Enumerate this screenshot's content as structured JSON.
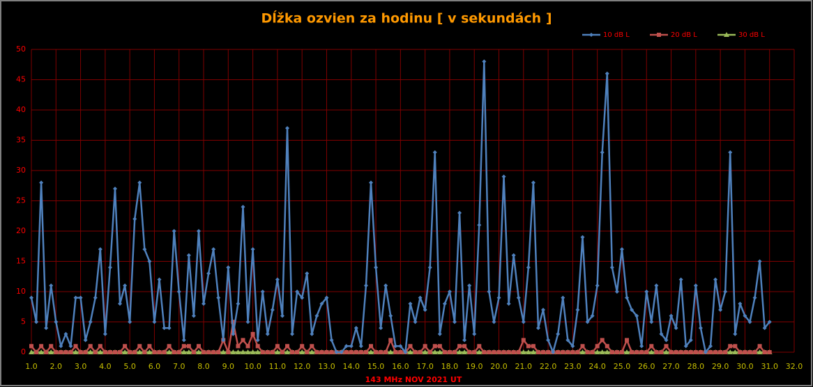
{
  "chart_data": {
    "type": "line",
    "title": "Dĺžka ozvien za hodinu [ v sekundách ]",
    "x_label": "143 MHz NOV 2021 UT",
    "x": [
      1,
      1.2,
      1.4,
      1.6,
      1.8,
      2,
      2.2,
      2.4,
      2.6,
      2.8,
      3,
      3.2,
      3.4,
      3.6,
      3.8,
      4,
      4.2,
      4.4,
      4.6,
      4.8,
      5,
      5.2,
      5.4,
      5.6,
      5.8,
      6,
      6.2,
      6.4,
      6.6,
      6.8,
      7,
      7.2,
      7.4,
      7.6,
      7.8,
      8,
      8.2,
      8.4,
      8.6,
      8.8,
      9,
      9.2,
      9.4,
      9.6,
      9.8,
      10,
      10.2,
      10.4,
      10.6,
      10.8,
      11,
      11.2,
      11.4,
      11.6,
      11.8,
      12,
      12.2,
      12.4,
      12.6,
      12.8,
      13,
      13.2,
      13.4,
      13.6,
      13.8,
      14,
      14.2,
      14.4,
      14.6,
      14.8,
      15,
      15.2,
      15.4,
      15.6,
      15.8,
      16,
      16.2,
      16.4,
      16.6,
      16.8,
      17,
      17.2,
      17.4,
      17.6,
      17.8,
      18,
      18.2,
      18.4,
      18.6,
      18.8,
      19,
      19.2,
      19.4,
      19.6,
      19.8,
      20,
      20.2,
      20.4,
      20.6,
      20.8,
      21,
      21.2,
      21.4,
      21.6,
      21.8,
      22,
      22.2,
      22.4,
      22.6,
      22.8,
      23,
      23.2,
      23.4,
      23.6,
      23.8,
      24,
      24.2,
      24.4,
      24.6,
      24.8,
      25,
      25.2,
      25.4,
      25.6,
      25.8,
      26,
      26.2,
      26.4,
      26.6,
      26.8,
      27,
      27.2,
      27.4,
      27.6,
      27.8,
      28,
      28.2,
      28.4,
      28.6,
      28.8,
      29,
      29.2,
      29.4,
      29.6,
      29.8,
      30,
      30.2,
      30.4,
      30.6,
      30.8,
      31
    ],
    "series": [
      {
        "name": "10 dB L",
        "color": "#4f81bd",
        "marker": "diamond",
        "values": [
          9,
          5,
          28,
          4,
          11,
          5,
          1,
          3,
          1,
          9,
          9,
          2,
          5,
          9,
          17,
          3,
          14,
          27,
          8,
          11,
          5,
          22,
          28,
          17,
          15,
          5,
          12,
          4,
          4,
          20,
          10,
          2,
          16,
          6,
          20,
          8,
          13,
          17,
          9,
          2,
          14,
          3,
          8,
          24,
          5,
          17,
          2,
          10,
          3,
          7,
          12,
          6,
          37,
          3,
          10,
          9,
          13,
          3,
          6,
          8,
          9,
          2,
          0,
          0,
          1,
          1,
          4,
          1,
          11,
          28,
          14,
          4,
          11,
          6,
          1,
          1,
          0,
          8,
          5,
          9,
          7,
          14,
          33,
          3,
          8,
          10,
          5,
          23,
          2,
          11,
          3,
          21,
          48,
          10,
          5,
          9,
          29,
          8,
          16,
          9,
          5,
          14,
          28,
          4,
          7,
          2,
          0,
          3,
          9,
          2,
          1,
          7,
          19,
          5,
          6,
          11,
          33,
          46,
          14,
          10,
          17,
          9,
          7,
          6,
          1,
          10,
          5,
          11,
          3,
          2,
          6,
          4,
          12,
          1,
          2,
          11,
          4,
          0,
          1,
          12,
          7,
          10,
          33,
          3,
          8,
          6,
          5,
          9,
          15,
          4,
          5
        ]
      },
      {
        "name": "20 dB L",
        "color": "#c0504d",
        "marker": "square",
        "values": [
          1,
          0,
          1,
          0,
          1,
          0,
          0,
          0,
          0,
          1,
          0,
          0,
          1,
          0,
          1,
          0,
          0,
          0,
          0,
          1,
          0,
          0,
          1,
          0,
          1,
          0,
          0,
          0,
          1,
          0,
          0,
          1,
          1,
          0,
          1,
          0,
          0,
          0,
          0,
          2,
          0,
          5,
          1,
          2,
          1,
          3,
          1,
          0,
          0,
          0,
          1,
          0,
          1,
          0,
          0,
          1,
          0,
          1,
          0,
          0,
          0,
          0,
          0,
          0,
          0,
          0,
          0,
          0,
          0,
          1,
          0,
          0,
          0,
          2,
          0,
          0,
          0,
          1,
          0,
          0,
          1,
          0,
          1,
          1,
          0,
          0,
          0,
          1,
          1,
          0,
          0,
          1,
          0,
          0,
          0,
          0,
          0,
          0,
          0,
          0,
          2,
          1,
          1,
          0,
          0,
          0,
          0,
          0,
          0,
          0,
          0,
          0,
          1,
          0,
          0,
          1,
          2,
          1,
          0,
          0,
          0,
          2,
          0,
          0,
          0,
          0,
          1,
          0,
          0,
          1,
          0,
          0,
          0,
          0,
          0,
          0,
          0,
          0,
          0,
          0,
          0,
          0,
          1,
          1,
          0,
          0,
          0,
          0,
          1,
          0,
          0
        ]
      },
      {
        "name": "30 dB L",
        "color": "#9bbb59",
        "marker": "triangle",
        "values": [
          0,
          0,
          0,
          0,
          0,
          0,
          0,
          0,
          0,
          0,
          0,
          0,
          0,
          0,
          0,
          0,
          0,
          0,
          0,
          0,
          0,
          0,
          0,
          0,
          0,
          0,
          0,
          0,
          0,
          0,
          0,
          0,
          0,
          0,
          0,
          0,
          0,
          0,
          0,
          0,
          0,
          0,
          0,
          0,
          0,
          0,
          0,
          0,
          0,
          0,
          0,
          0,
          0,
          0,
          0,
          0,
          0,
          0,
          0,
          0,
          0,
          0,
          0,
          0,
          0,
          0,
          0,
          0,
          0,
          0,
          0,
          0,
          0,
          0,
          0,
          0,
          0,
          0,
          0,
          0,
          0,
          0,
          0,
          0,
          0,
          0,
          0,
          0,
          0,
          0,
          0,
          0,
          0,
          0,
          0,
          0,
          0,
          0,
          0,
          0,
          0,
          0,
          0,
          0,
          0,
          0,
          0,
          0,
          0,
          0,
          0,
          0,
          0,
          0,
          0,
          0,
          0,
          0,
          0,
          0,
          0,
          0,
          0,
          0,
          0,
          0,
          0,
          0,
          0,
          0,
          0,
          0,
          0,
          0,
          0,
          0,
          0,
          0,
          0,
          0,
          0,
          0,
          0,
          0,
          0,
          0,
          0,
          0,
          0,
          0,
          0
        ]
      }
    ],
    "xlim": [
      1,
      32
    ],
    "xticks": [
      {
        "value": 1,
        "label": "1.0"
      },
      {
        "value": 2,
        "label": "2.0"
      },
      {
        "value": 3,
        "label": "3.0"
      },
      {
        "value": 4,
        "label": "4.0"
      },
      {
        "value": 5,
        "label": "5.0"
      },
      {
        "value": 6,
        "label": "6.0"
      },
      {
        "value": 7,
        "label": "7.0"
      },
      {
        "value": 8,
        "label": "8.0"
      },
      {
        "value": 9,
        "label": "9.0"
      },
      {
        "value": 10,
        "label": "10.0"
      },
      {
        "value": 11,
        "label": "11.0"
      },
      {
        "value": 12,
        "label": "12.0"
      },
      {
        "value": 13,
        "label": "13.0"
      },
      {
        "value": 14,
        "label": "14.0"
      },
      {
        "value": 15,
        "label": "15.0"
      },
      {
        "value": 16,
        "label": "16.0"
      },
      {
        "value": 17,
        "label": "17.0"
      },
      {
        "value": 18,
        "label": "18.0"
      },
      {
        "value": 19,
        "label": "19.0"
      },
      {
        "value": 20,
        "label": "20.0"
      },
      {
        "value": 21,
        "label": "21.0"
      },
      {
        "value": 22,
        "label": "22.0"
      },
      {
        "value": 23,
        "label": "23.0"
      },
      {
        "value": 24,
        "label": "24.0"
      },
      {
        "value": 25,
        "label": "25.0"
      },
      {
        "value": 26,
        "label": "26.0"
      },
      {
        "value": 27,
        "label": "27.0"
      },
      {
        "value": 28,
        "label": "28.0"
      },
      {
        "value": 29,
        "label": "29.0"
      },
      {
        "value": 30,
        "label": "30.0"
      },
      {
        "value": 31,
        "label": "31.0"
      },
      {
        "value": 32,
        "label": "32.0"
      }
    ],
    "ylim": [
      0,
      50
    ],
    "yticks": [
      0,
      5,
      10,
      15,
      20,
      25,
      30,
      35,
      40,
      45,
      50
    ],
    "grid": true,
    "legend": "top-right"
  }
}
